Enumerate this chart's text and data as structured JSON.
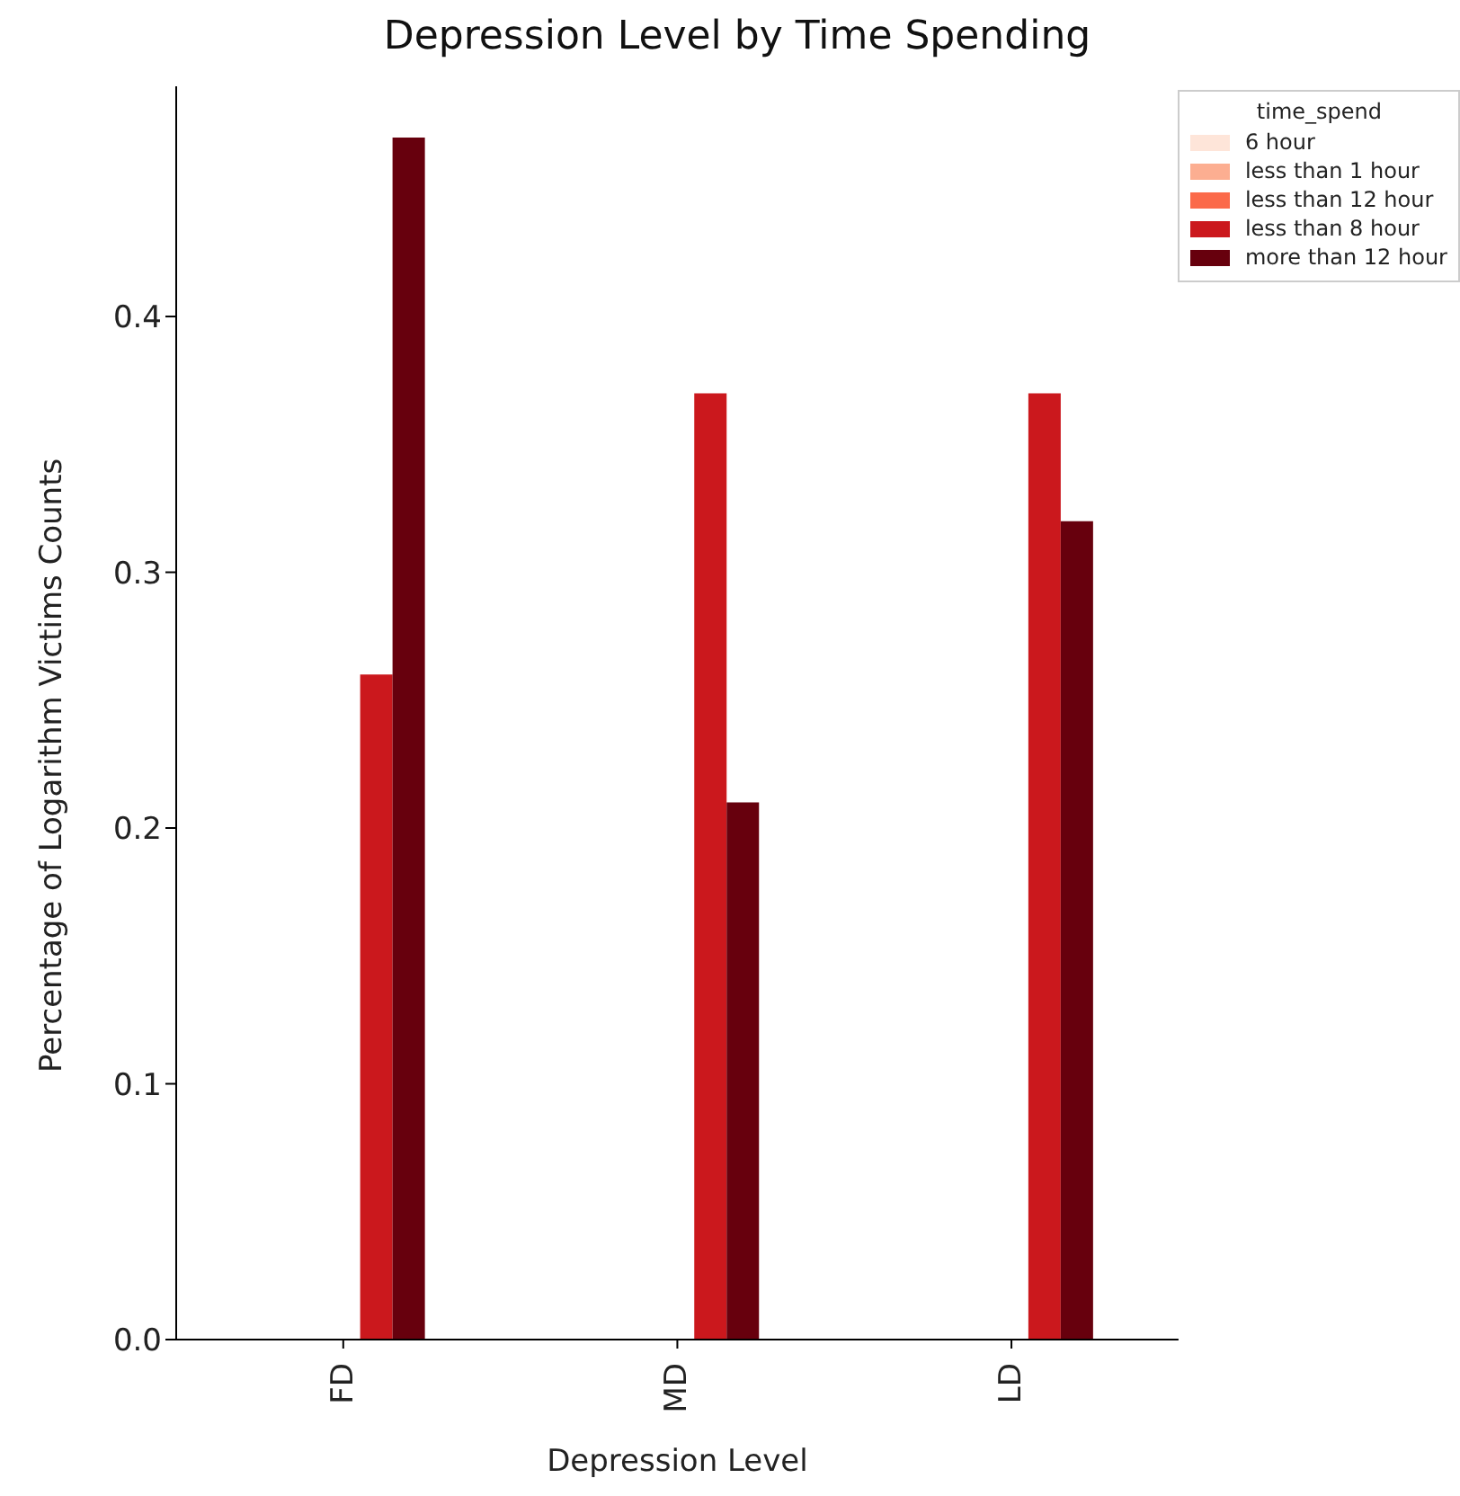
{
  "chart_data": {
    "type": "bar",
    "title": "Depression Level by Time Spending",
    "xlabel": "Depression Level",
    "ylabel": "Percentage of Logarithm Victims Counts",
    "legend_title": "time_spend",
    "legend": "top right",
    "categories": [
      "FD",
      "MD",
      "LD"
    ],
    "ylim": [
      0,
      0.49
    ],
    "yticks": [
      {
        "value": 0,
        "label": "0.0"
      },
      {
        "value": 0.1,
        "label": "0.1"
      },
      {
        "value": 0.2,
        "label": "0.2"
      },
      {
        "value": 0.3,
        "label": "0.3"
      },
      {
        "value": 0.4,
        "label": "0.4"
      }
    ],
    "series": [
      {
        "name": "6 hour",
        "color": "#fee5d9",
        "values": [
          0,
          0,
          0
        ]
      },
      {
        "name": "less than 1 hour",
        "color": "#fcae91",
        "values": [
          0,
          0,
          0
        ]
      },
      {
        "name": "less than 12 hour",
        "color": "#fb6a4a",
        "values": [
          0,
          0,
          0
        ]
      },
      {
        "name": "less than 8 hour",
        "color": "#cb181d",
        "values": [
          0.26,
          0.37,
          0.37
        ]
      },
      {
        "name": "more than 12 hour",
        "color": "#67000d",
        "values": [
          0.47,
          0.21,
          0.32
        ]
      }
    ]
  }
}
